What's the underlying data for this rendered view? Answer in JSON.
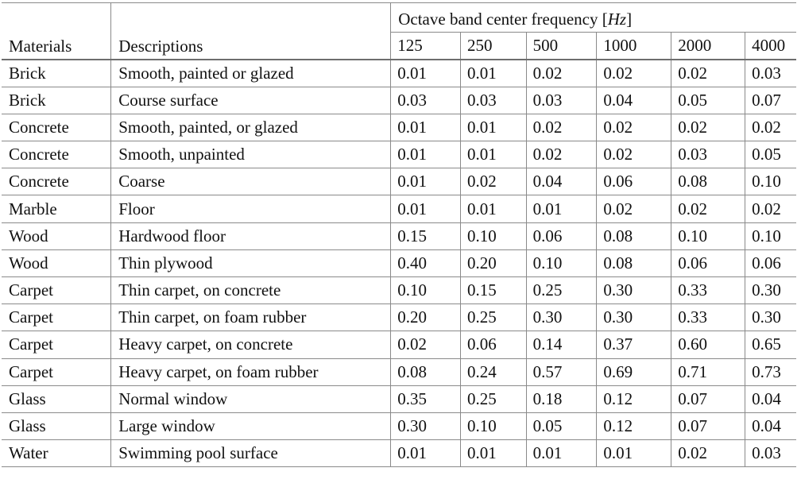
{
  "table": {
    "header": {
      "materials": "Materials",
      "descriptions": "Descriptions",
      "freq_title_prefix": "Octave band center frequency [",
      "freq_unit": "Hz",
      "freq_title_suffix": "]",
      "frequencies": [
        "125",
        "250",
        "500",
        "1000",
        "2000",
        "4000"
      ]
    },
    "rows": [
      {
        "material": "Brick",
        "description": "Smooth, painted or glazed",
        "values": [
          "0.01",
          "0.01",
          "0.02",
          "0.02",
          "0.02",
          "0.03"
        ]
      },
      {
        "material": "Brick",
        "description": "Course surface",
        "values": [
          "0.03",
          "0.03",
          "0.03",
          "0.04",
          "0.05",
          "0.07"
        ]
      },
      {
        "material": "Concrete",
        "description": "Smooth, painted, or glazed",
        "values": [
          "0.01",
          "0.01",
          "0.02",
          "0.02",
          "0.02",
          "0.02"
        ]
      },
      {
        "material": "Concrete",
        "description": "Smooth, unpainted",
        "values": [
          "0.01",
          "0.01",
          "0.02",
          "0.02",
          "0.03",
          "0.05"
        ]
      },
      {
        "material": "Concrete",
        "description": "Coarse",
        "values": [
          "0.01",
          "0.02",
          "0.04",
          "0.06",
          "0.08",
          "0.10"
        ]
      },
      {
        "material": "Marble",
        "description": "Floor",
        "values": [
          "0.01",
          "0.01",
          "0.01",
          "0.02",
          "0.02",
          "0.02"
        ]
      },
      {
        "material": "Wood",
        "description": "Hardwood floor",
        "values": [
          "0.15",
          "0.10",
          "0.06",
          "0.08",
          "0.10",
          "0.10"
        ]
      },
      {
        "material": "Wood",
        "description": "Thin plywood",
        "values": [
          "0.40",
          "0.20",
          "0.10",
          "0.08",
          "0.06",
          "0.06"
        ]
      },
      {
        "material": "Carpet",
        "description": "Thin carpet, on concrete",
        "values": [
          "0.10",
          "0.15",
          "0.25",
          "0.30",
          "0.33",
          "0.30"
        ]
      },
      {
        "material": "Carpet",
        "description": "Thin carpet, on foam rubber",
        "values": [
          "0.20",
          "0.25",
          "0.30",
          "0.30",
          "0.33",
          "0.30"
        ]
      },
      {
        "material": "Carpet",
        "description": "Heavy carpet, on concrete",
        "values": [
          "0.02",
          "0.06",
          "0.14",
          "0.37",
          "0.60",
          "0.65"
        ]
      },
      {
        "material": "Carpet",
        "description": "Heavy carpet, on foam rubber",
        "values": [
          "0.08",
          "0.24",
          "0.57",
          "0.69",
          "0.71",
          "0.73"
        ]
      },
      {
        "material": "Glass",
        "description": "Normal window",
        "values": [
          "0.35",
          "0.25",
          "0.18",
          "0.12",
          "0.07",
          "0.04"
        ]
      },
      {
        "material": "Glass",
        "description": "Large window",
        "values": [
          "0.30",
          "0.10",
          "0.05",
          "0.12",
          "0.07",
          "0.04"
        ]
      },
      {
        "material": "Water",
        "description": "Swimming pool surface",
        "values": [
          "0.01",
          "0.01",
          "0.01",
          "0.01",
          "0.02",
          "0.03"
        ]
      }
    ]
  }
}
